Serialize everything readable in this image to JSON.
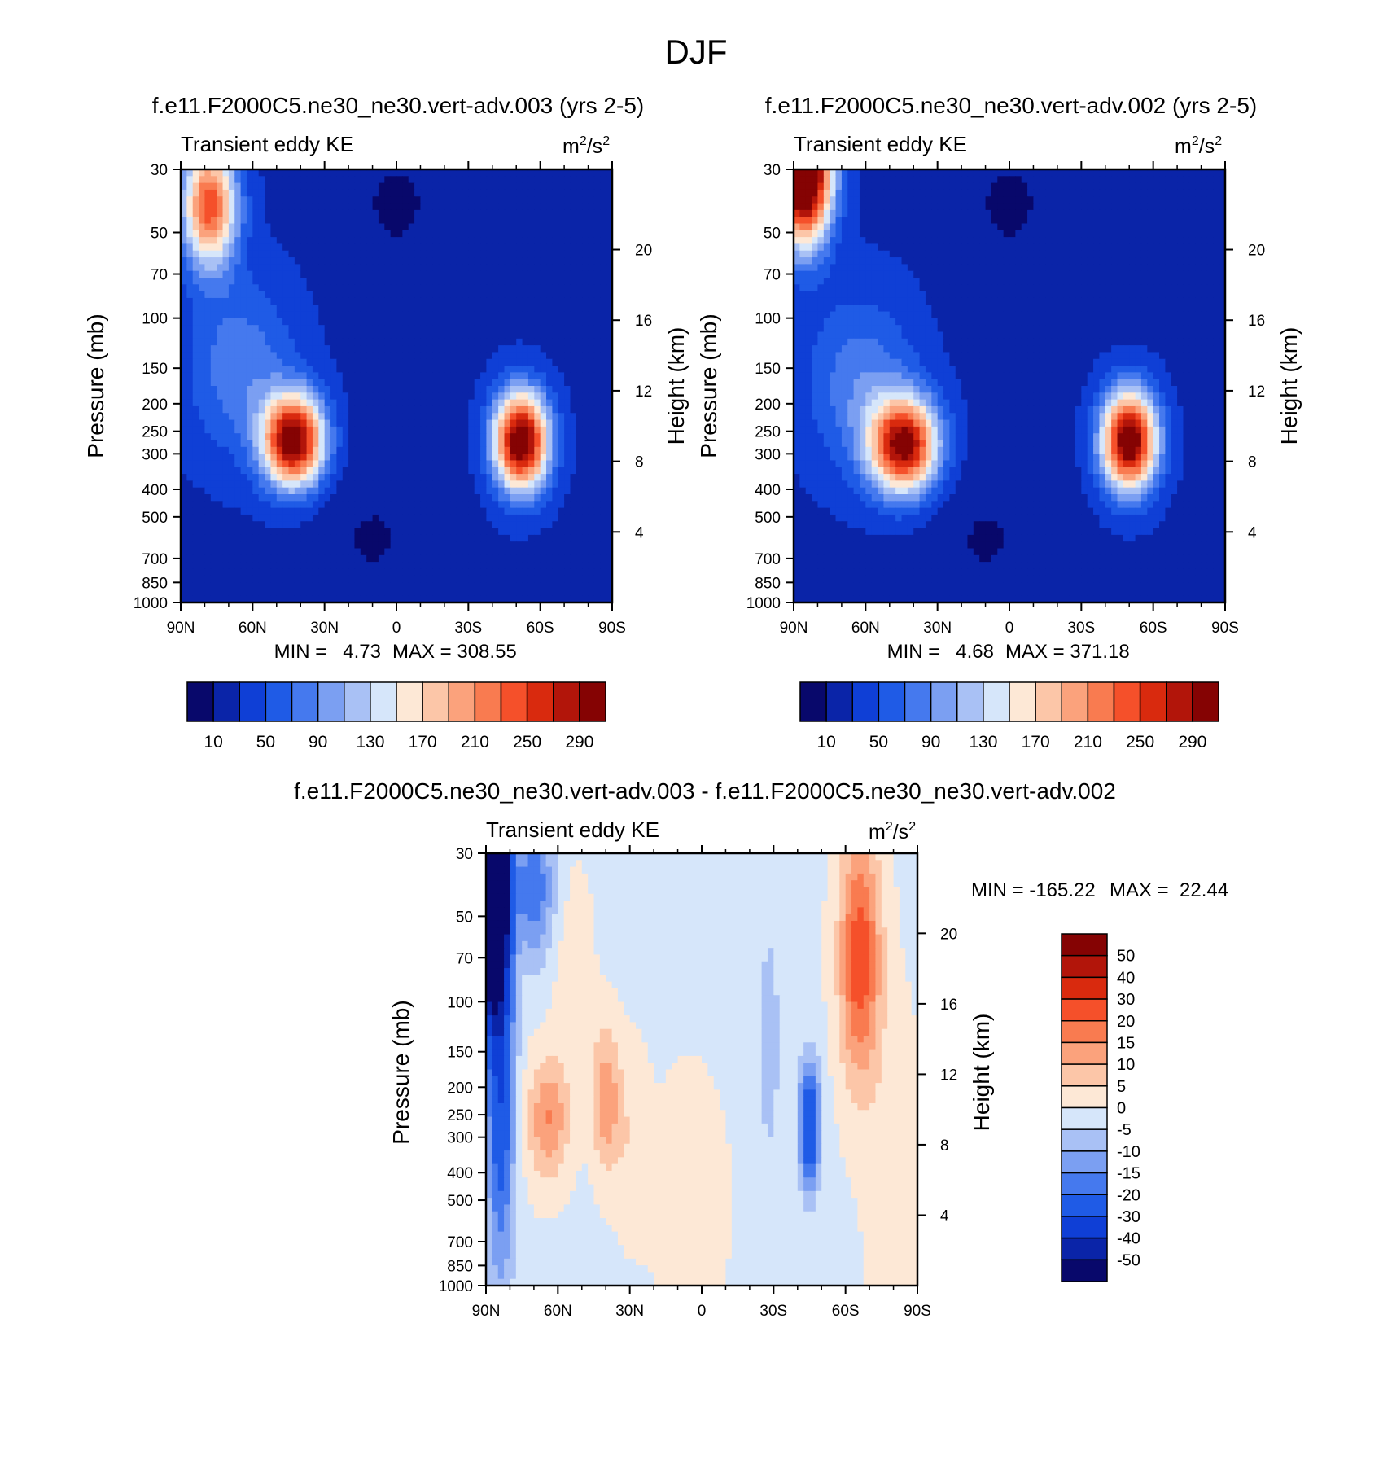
{
  "figure": {
    "title": "DJF"
  },
  "colors": {
    "seq_palette": [
      "#08086b",
      "#0a24a8",
      "#0f3fd6",
      "#1f5be6",
      "#4579ee",
      "#7b9ff2",
      "#a9c1f5",
      "#d6e6fa",
      "#fde8d6",
      "#fcc6a8",
      "#fba27c",
      "#f97b50",
      "#f5502a",
      "#d92a0e",
      "#b2150a",
      "#850303"
    ],
    "diff_palette": [
      "#08086b",
      "#0a24a8",
      "#0f3fd6",
      "#1f5be6",
      "#4579ee",
      "#7b9ff2",
      "#a9c1f5",
      "#d6e6fa",
      "#fde8d6",
      "#fcc6a8",
      "#fba27c",
      "#f97b50",
      "#f5502a",
      "#d92a0e",
      "#b2150a",
      "#850303"
    ]
  },
  "chart_data": [
    {
      "type": "heatmap",
      "panel": "top-left",
      "title": "f.e11.F2000C5.ne30_ne30.vert-adv.003 (yrs 2-5)",
      "subtitle_left": "Transient eddy KE",
      "units": "m2/s2",
      "units_base": "m",
      "units_exp": "2",
      "units_sep": "/s",
      "units_exp2": "2",
      "ylabel": "Pressure (mb)",
      "ylabel_right": "Height (km)",
      "x_ticks": [
        "90N",
        "60N",
        "30N",
        "0",
        "30S",
        "60S",
        "90S"
      ],
      "x_range": [
        90,
        -90
      ],
      "y_ticks": [
        "30",
        "50",
        "70",
        "100",
        "150",
        "200",
        "250",
        "300",
        "400",
        "500",
        "700",
        "850",
        "1000"
      ],
      "y_range_mb": [
        30,
        1000
      ],
      "y_right_ticks": [
        "20",
        "16",
        "12",
        "8",
        "4"
      ],
      "min_label": "MIN =   4.73",
      "max_label": "MAX = 308.55",
      "min": 4.73,
      "max": 308.55,
      "levels": [
        10,
        30,
        50,
        70,
        90,
        110,
        130,
        150,
        170,
        190,
        210,
        230,
        250,
        270,
        290
      ],
      "colorbar_labels": [
        "10",
        "50",
        "90",
        "130",
        "170",
        "210",
        "250",
        "290"
      ],
      "colorbar_placement": "bottom",
      "field": {
        "background": 25,
        "blobs": [
          {
            "lat": 43,
            "p": 270,
            "amp": 290,
            "sx": 9,
            "sy": 0.26
          },
          {
            "lat": 65,
            "p": 150,
            "amp": 60,
            "sx": 16,
            "sy": 0.5
          },
          {
            "lat": 78,
            "p": 40,
            "amp": 220,
            "sx": 8,
            "sy": 0.35
          },
          {
            "lat": -52,
            "p": 270,
            "amp": 300,
            "sx": 8,
            "sy": 0.28
          },
          {
            "lat": 0,
            "p": 40,
            "amp": -18,
            "sx": 15,
            "sy": 0.4
          },
          {
            "lat": 10,
            "p": 600,
            "amp": -16,
            "sx": 20,
            "sy": 0.5
          }
        ]
      }
    },
    {
      "type": "heatmap",
      "panel": "top-right",
      "title": "f.e11.F2000C5.ne30_ne30.vert-adv.002 (yrs 2-5)",
      "subtitle_left": "Transient eddy KE",
      "units": "m2/s2",
      "units_base": "m",
      "units_exp": "2",
      "units_sep": "/s",
      "units_exp2": "2",
      "ylabel": "Pressure (mb)",
      "ylabel_right": "Height (km)",
      "x_ticks": [
        "90N",
        "60N",
        "30N",
        "0",
        "30S",
        "60S",
        "90S"
      ],
      "x_range": [
        90,
        -90
      ],
      "y_ticks": [
        "30",
        "50",
        "70",
        "100",
        "150",
        "200",
        "250",
        "300",
        "400",
        "500",
        "700",
        "850",
        "1000"
      ],
      "y_range_mb": [
        30,
        1000
      ],
      "y_right_ticks": [
        "20",
        "16",
        "12",
        "8",
        "4"
      ],
      "min_label": "MIN =   4.68",
      "max_label": "MAX = 371.18",
      "min": 4.68,
      "max": 371.18,
      "levels": [
        10,
        30,
        50,
        70,
        90,
        110,
        130,
        150,
        170,
        190,
        210,
        230,
        250,
        270,
        290
      ],
      "colorbar_labels": [
        "10",
        "50",
        "90",
        "130",
        "170",
        "210",
        "250",
        "290"
      ],
      "colorbar_placement": "bottom",
      "field": {
        "background": 25,
        "blobs": [
          {
            "lat": 44,
            "p": 280,
            "amp": 270,
            "sx": 10,
            "sy": 0.27
          },
          {
            "lat": 62,
            "p": 170,
            "amp": 60,
            "sx": 16,
            "sy": 0.5
          },
          {
            "lat": 86,
            "p": 30,
            "amp": 380,
            "sx": 8,
            "sy": 0.4
          },
          {
            "lat": -50,
            "p": 270,
            "amp": 300,
            "sx": 8,
            "sy": 0.28
          },
          {
            "lat": 0,
            "p": 40,
            "amp": -18,
            "sx": 15,
            "sy": 0.4
          },
          {
            "lat": 10,
            "p": 600,
            "amp": -16,
            "sx": 20,
            "sy": 0.5
          }
        ]
      }
    },
    {
      "type": "heatmap",
      "panel": "bottom-difference",
      "title": "f.e11.F2000C5.ne30_ne30.vert-adv.003 - f.e11.F2000C5.ne30_ne30.vert-adv.002",
      "subtitle_left": "Transient eddy KE",
      "units": "m2/s2",
      "units_base": "m",
      "units_exp": "2",
      "units_sep": "/s",
      "units_exp2": "2",
      "ylabel": "Pressure (mb)",
      "ylabel_right": "Height (km)",
      "x_ticks": [
        "90N",
        "60N",
        "30N",
        "0",
        "30S",
        "60S",
        "90S"
      ],
      "x_range": [
        90,
        -90
      ],
      "y_ticks": [
        "30",
        "50",
        "70",
        "100",
        "150",
        "200",
        "250",
        "300",
        "400",
        "500",
        "700",
        "850",
        "1000"
      ],
      "y_range_mb": [
        30,
        1000
      ],
      "y_right_ticks": [
        "20",
        "16",
        "12",
        "8",
        "4"
      ],
      "min_label": "MIN = -165.22",
      "max_label": "MAX =  22.44",
      "min": -165.22,
      "max": 22.44,
      "levels": [
        -50,
        -40,
        -30,
        -20,
        -15,
        -10,
        -5,
        0,
        5,
        10,
        15,
        20,
        30,
        40,
        50
      ],
      "colorbar_labels": [
        "50",
        "40",
        "30",
        "20",
        "15",
        "10",
        "5",
        "0",
        "-5",
        "-10",
        "-15",
        "-20",
        "-30",
        "-40",
        "-50"
      ],
      "colorbar_placement": "right",
      "field": {
        "background": -1,
        "blobs": [
          {
            "lat": 88,
            "p": 35,
            "amp": -170,
            "sx": 4,
            "sy": 0.6
          },
          {
            "lat": 84,
            "p": 150,
            "amp": -30,
            "sx": 4,
            "sy": 1.2
          },
          {
            "lat": 70,
            "p": 40,
            "amp": -18,
            "sx": 6,
            "sy": 0.4
          },
          {
            "lat": 64,
            "p": 260,
            "amp": 16,
            "sx": 6,
            "sy": 0.35
          },
          {
            "lat": 40,
            "p": 220,
            "amp": 15,
            "sx": 4,
            "sy": 0.4
          },
          {
            "lat": 54,
            "p": 80,
            "amp": 4,
            "sx": 6,
            "sy": 0.6
          },
          {
            "lat": 30,
            "p": 300,
            "amp": 5,
            "sx": 5,
            "sy": 0.5
          },
          {
            "lat": 5,
            "p": 500,
            "amp": 3,
            "sx": 12,
            "sy": 0.8
          },
          {
            "lat": -28,
            "p": 140,
            "amp": -9,
            "sx": 3,
            "sy": 0.6
          },
          {
            "lat": -45,
            "p": 270,
            "amp": -30,
            "sx": 3,
            "sy": 0.35
          },
          {
            "lat": -66,
            "p": 70,
            "amp": 25,
            "sx": 6,
            "sy": 0.7
          },
          {
            "lat": -80,
            "p": 400,
            "amp": 4,
            "sx": 8,
            "sy": 1.0
          }
        ]
      }
    }
  ]
}
